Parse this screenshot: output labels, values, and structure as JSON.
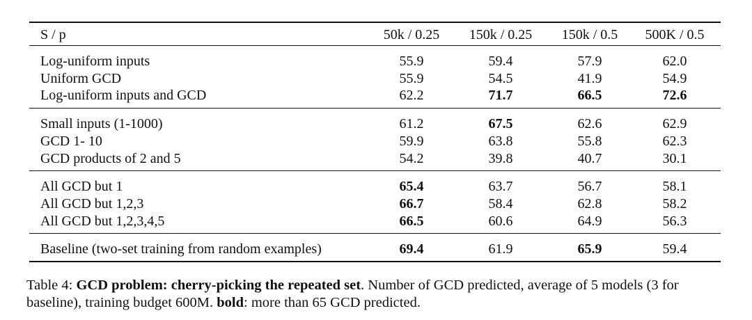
{
  "table": {
    "header": [
      "S / p",
      "50k / 0.25",
      "150k / 0.25",
      "150k / 0.5",
      "500K / 0.5"
    ],
    "groups": [
      [
        {
          "label": "Log-uniform inputs",
          "values": [
            "55.9",
            "59.4",
            "57.9",
            "62.0"
          ],
          "bold": [
            false,
            false,
            false,
            false
          ]
        },
        {
          "label": "Uniform GCD",
          "values": [
            "55.9",
            "54.5",
            "41.9",
            "54.9"
          ],
          "bold": [
            false,
            false,
            false,
            false
          ]
        },
        {
          "label": "Log-uniform inputs and GCD",
          "values": [
            "62.2",
            "71.7",
            "66.5",
            "72.6"
          ],
          "bold": [
            false,
            true,
            true,
            true
          ]
        }
      ],
      [
        {
          "label": "Small inputs (1-1000)",
          "values": [
            "61.2",
            "67.5",
            "62.6",
            "62.9"
          ],
          "bold": [
            false,
            true,
            false,
            false
          ]
        },
        {
          "label": "GCD 1- 10",
          "values": [
            "59.9",
            "63.8",
            "55.8",
            "62.3"
          ],
          "bold": [
            false,
            false,
            false,
            false
          ]
        },
        {
          "label": "GCD products of 2 and 5",
          "values": [
            "54.2",
            "39.8",
            "40.7",
            "30.1"
          ],
          "bold": [
            false,
            false,
            false,
            false
          ]
        }
      ],
      [
        {
          "label": "All GCD but 1",
          "values": [
            "65.4",
            "63.7",
            "56.7",
            "58.1"
          ],
          "bold": [
            true,
            false,
            false,
            false
          ]
        },
        {
          "label": "All GCD but 1,2,3",
          "values": [
            "66.7",
            "58.4",
            "62.8",
            "58.2"
          ],
          "bold": [
            true,
            false,
            false,
            false
          ]
        },
        {
          "label": "All GCD but 1,2,3,4,5",
          "values": [
            "66.5",
            "60.6",
            "64.9",
            "56.3"
          ],
          "bold": [
            true,
            false,
            false,
            false
          ]
        }
      ],
      [
        {
          "label": "Baseline (two-set training from random examples)",
          "values": [
            "69.4",
            "61.9",
            "65.9",
            "59.4"
          ],
          "bold": [
            true,
            false,
            true,
            false
          ]
        }
      ]
    ]
  },
  "caption": {
    "label": "Table 4:",
    "title": "GCD problem: cherry-picking the repeated set",
    "text": ". Number of GCD predicted, average of 5 models (3 for baseline), training budget 600M.",
    "key": "bold",
    "key_text": ": more than 65 GCD predicted."
  }
}
